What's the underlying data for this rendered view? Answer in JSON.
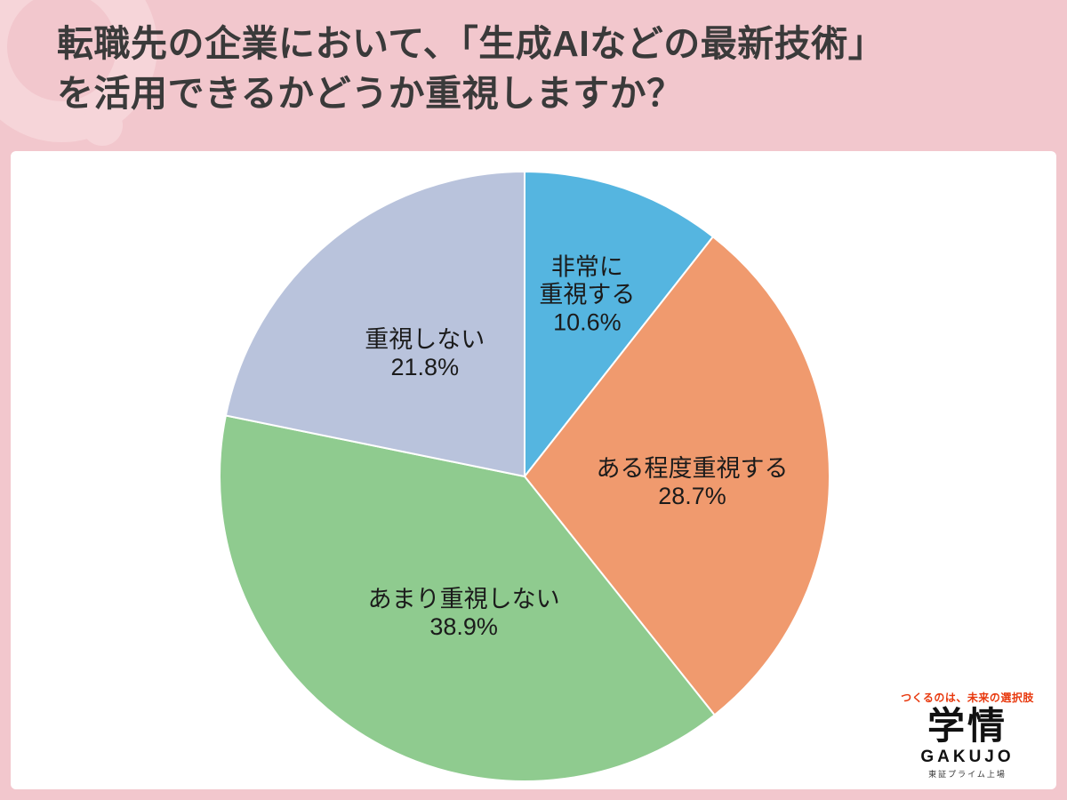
{
  "header": {
    "title_line1": "転職先の企業において、「生成AIなどの最新技術」",
    "title_line2": "を活用できるかどうか重視しますか？"
  },
  "logo": {
    "tagline": "つくるのは、未来の選択肢",
    "name": "学情",
    "name_en": "GAKUJO",
    "listing": "東証プライム上場"
  },
  "colors": {
    "background_pink": "#f2c7cd",
    "ornament_pink": "#f6d5d9",
    "card_white": "#ffffff",
    "title_text": "#3a3a3a",
    "label_text": "#1b1b1b",
    "tagline_red": "#e8380d"
  },
  "chart_data": {
    "type": "pie",
    "title": "転職先の企業において、「生成AIなどの最新技術」を活用できるかどうか重視しますか？",
    "unit": "%",
    "start_angle_deg": 0,
    "direction": "clockwise",
    "legend": "none",
    "label_position": "inside",
    "slices": [
      {
        "label": "非常に重視する",
        "value": 10.6,
        "color": "#55b5e0",
        "display_lines": [
          "非常に",
          "重視する",
          "10.6%"
        ],
        "label_angle_deg": 19,
        "label_radius_factor": 0.63
      },
      {
        "label": "ある程度重視する",
        "value": 28.7,
        "color": "#f09a6e",
        "display_lines": [
          "ある程度重視する",
          "28.7%"
        ],
        "label_angle_deg": 92,
        "label_radius_factor": 0.55
      },
      {
        "label": "あまり重視しない",
        "value": 38.9,
        "color": "#8fcb8f",
        "display_lines": [
          "あまり重視しない",
          "38.9%"
        ],
        "label_angle_deg": 204,
        "label_radius_factor": 0.49
      },
      {
        "label": "重視しない",
        "value": 21.8,
        "color": "#b9c3dc",
        "display_lines": [
          "重視しない",
          "21.8%"
        ],
        "label_angle_deg": 321,
        "label_radius_factor": 0.52
      }
    ]
  }
}
